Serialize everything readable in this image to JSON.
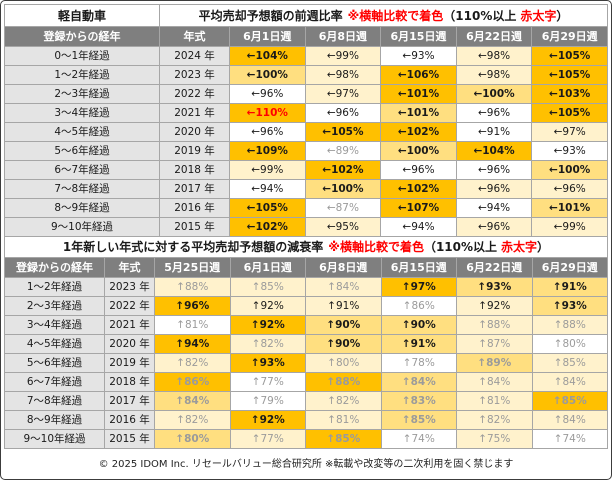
{
  "vehicle_class": "軽自動車",
  "colors": {
    "header_bg": "#7f7f7f",
    "header_text": "#ffffff",
    "label_bg": "#e4e4e4",
    "grid": "#a6a6a6",
    "heat_levels": [
      "#ffffff",
      "#fff2cc",
      "#ffdf80",
      "#ffc000"
    ],
    "text_normal": "#1a1a1a",
    "text_dim": "#9b9b9b",
    "text_red": "#ff0000"
  },
  "chart_data": [
    {
      "type": "table",
      "title": "平均売却予想額の前週比率",
      "note": "※横軸比較で着色",
      "legend_open": "（110%以上",
      "legend_emphasis": "赤太字",
      "legend_close": "）",
      "headers": {
        "age": "登録からの経年",
        "model_year": "年式"
      },
      "weeks": [
        "6月1日週",
        "6月8日週",
        "6月15日週",
        "6月22日週",
        "6月29日週"
      ],
      "value_prefix": "←",
      "value_suffix": "%",
      "rows": [
        {
          "age": "0～1年経過",
          "model_year": "2024 年",
          "values": [
            104,
            99,
            93,
            98,
            105
          ],
          "heat": [
            3,
            1,
            0,
            1,
            3
          ]
        },
        {
          "age": "1～2年経過",
          "model_year": "2023 年",
          "values": [
            100,
            98,
            106,
            98,
            105
          ],
          "heat": [
            2,
            1,
            3,
            1,
            3
          ]
        },
        {
          "age": "2～3年経過",
          "model_year": "2022 年",
          "values": [
            96,
            97,
            101,
            100,
            103
          ],
          "heat": [
            0,
            1,
            3,
            2,
            3
          ]
        },
        {
          "age": "3～4年経過",
          "model_year": "2021 年",
          "values": [
            110,
            96,
            101,
            96,
            105
          ],
          "heat": [
            3,
            0,
            2,
            0,
            3
          ]
        },
        {
          "age": "4～5年経過",
          "model_year": "2020 年",
          "values": [
            96,
            105,
            102,
            91,
            97
          ],
          "heat": [
            0,
            3,
            3,
            0,
            1
          ]
        },
        {
          "age": "5～6年経過",
          "model_year": "2019 年",
          "values": [
            109,
            89,
            100,
            104,
            93
          ],
          "heat": [
            3,
            0,
            2,
            3,
            0
          ]
        },
        {
          "age": "6～7年経過",
          "model_year": "2018 年",
          "values": [
            99,
            102,
            96,
            96,
            100
          ],
          "heat": [
            1,
            3,
            0,
            0,
            2
          ]
        },
        {
          "age": "7～8年経過",
          "model_year": "2017 年",
          "values": [
            94,
            100,
            102,
            96,
            96
          ],
          "heat": [
            0,
            2,
            3,
            1,
            1
          ]
        },
        {
          "age": "8～9年経過",
          "model_year": "2016 年",
          "values": [
            105,
            87,
            107,
            94,
            101
          ],
          "heat": [
            3,
            0,
            3,
            0,
            2
          ]
        },
        {
          "age": "9～10年経過",
          "model_year": "2015 年",
          "values": [
            102,
            95,
            94,
            96,
            99
          ],
          "heat": [
            3,
            1,
            0,
            1,
            1
          ]
        }
      ]
    },
    {
      "type": "table",
      "title": "1年新しい年式に対する平均売却予想額の減衰率",
      "note": "※横軸比較で着色",
      "legend_open": "（110%以上",
      "legend_emphasis": "赤太字",
      "legend_close": "）",
      "headers": {
        "age": "登録からの経年",
        "model_year": "年式"
      },
      "weeks": [
        "5月25日週",
        "6月1日週",
        "6月8日週",
        "6月15日週",
        "6月22日週",
        "6月29日週"
      ],
      "value_prefix": "↑",
      "value_suffix": "%",
      "rows": [
        {
          "age": "1～2年経過",
          "model_year": "2023 年",
          "values": [
            88,
            85,
            84,
            97,
            93,
            91
          ],
          "heat": [
            1,
            1,
            1,
            3,
            2,
            2
          ]
        },
        {
          "age": "2～3年経過",
          "model_year": "2022 年",
          "values": [
            96,
            92,
            91,
            86,
            92,
            93
          ],
          "heat": [
            3,
            1,
            1,
            0,
            1,
            2
          ]
        },
        {
          "age": "3～4年経過",
          "model_year": "2021 年",
          "values": [
            81,
            92,
            90,
            90,
            88,
            88
          ],
          "heat": [
            0,
            3,
            2,
            2,
            1,
            1
          ]
        },
        {
          "age": "4～5年経過",
          "model_year": "2020 年",
          "values": [
            94,
            82,
            90,
            91,
            87,
            80
          ],
          "heat": [
            3,
            1,
            2,
            2,
            1,
            0
          ]
        },
        {
          "age": "5～6年経過",
          "model_year": "2019 年",
          "values": [
            82,
            93,
            80,
            78,
            89,
            85
          ],
          "heat": [
            1,
            3,
            1,
            0,
            2,
            1
          ]
        },
        {
          "age": "6～7年経過",
          "model_year": "2018 年",
          "values": [
            86,
            77,
            88,
            84,
            84,
            84
          ],
          "heat": [
            3,
            0,
            3,
            2,
            1,
            1
          ]
        },
        {
          "age": "7～8年経過",
          "model_year": "2017 年",
          "values": [
            84,
            79,
            82,
            83,
            81,
            85
          ],
          "heat": [
            2,
            0,
            1,
            2,
            1,
            3
          ]
        },
        {
          "age": "8～9年経過",
          "model_year": "2016 年",
          "values": [
            82,
            92,
            81,
            85,
            82,
            84
          ],
          "heat": [
            1,
            3,
            1,
            2,
            1,
            1
          ]
        },
        {
          "age": "9～10年経過",
          "model_year": "2015 年",
          "values": [
            80,
            77,
            85,
            74,
            75,
            74
          ],
          "heat": [
            2,
            1,
            3,
            0,
            1,
            0
          ]
        }
      ]
    }
  ],
  "footer": "© 2025 IDOM Inc. リセールバリュー総合研究所 ※転載や改変等の二次利用を固く禁じます"
}
